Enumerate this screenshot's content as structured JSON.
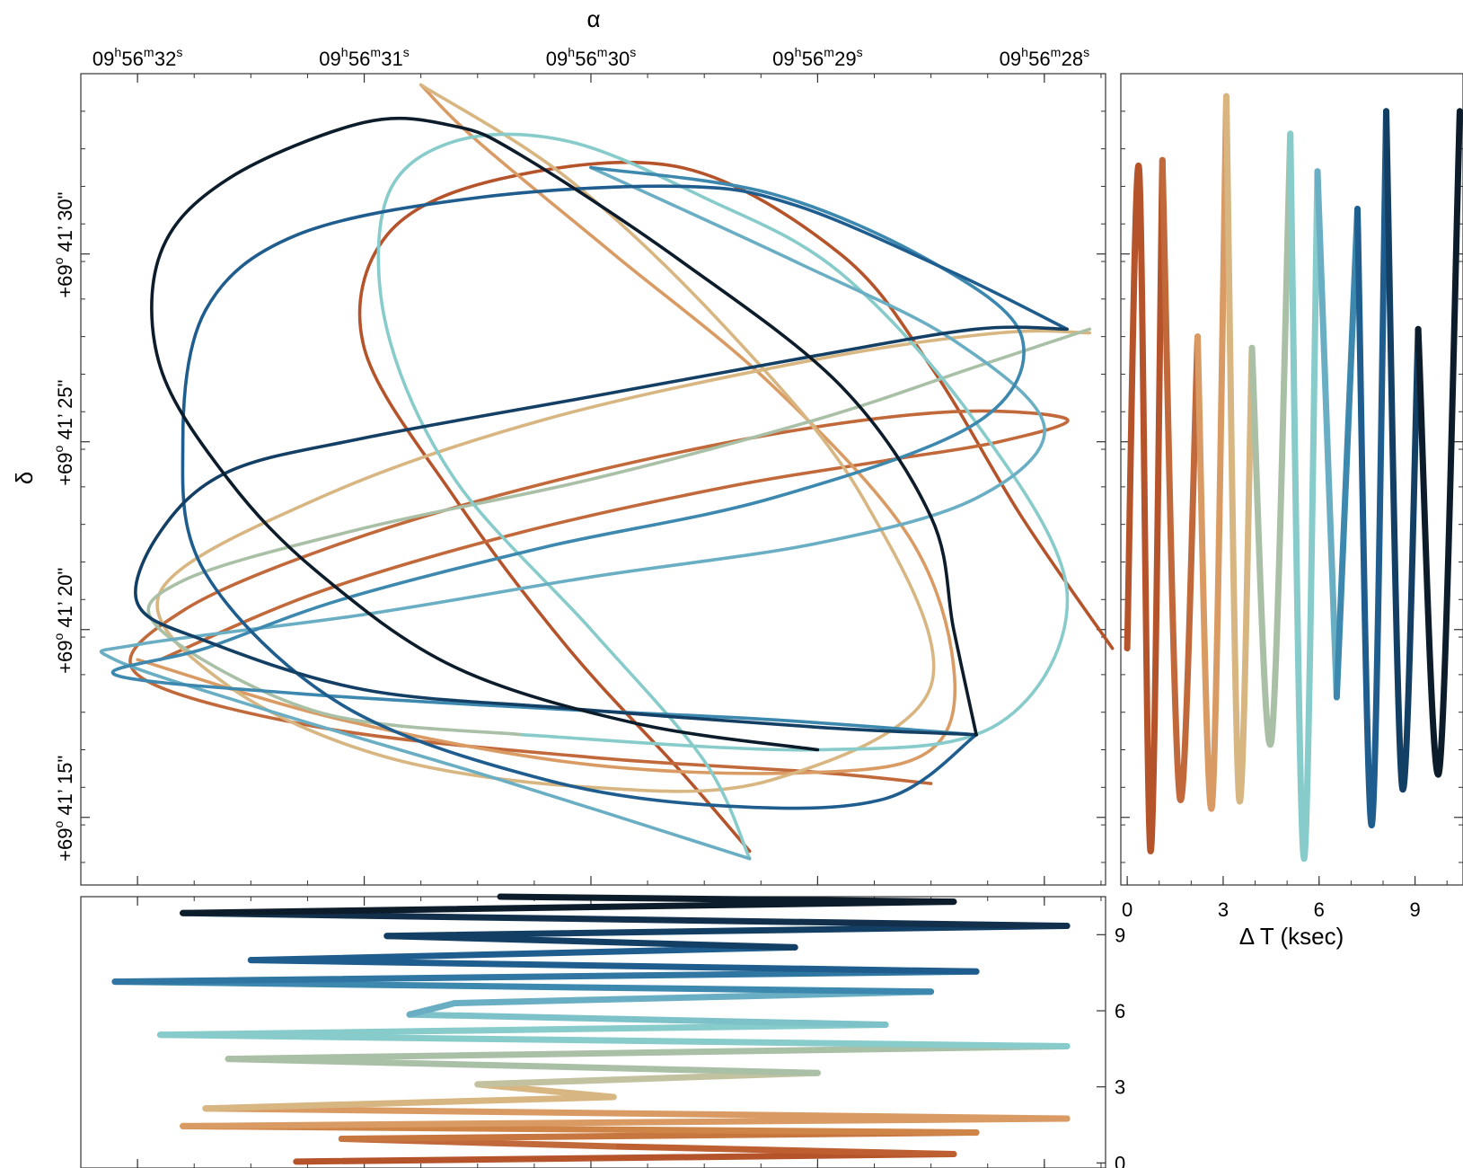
{
  "chart_data": [
    {
      "type": "line",
      "name": "sky-track",
      "xlabel": "α",
      "ylabel": "δ",
      "x_ticks": [
        {
          "h": "09",
          "m": "56",
          "s": "32"
        },
        {
          "h": "09",
          "m": "56",
          "s": "31"
        },
        {
          "h": "09",
          "m": "56",
          "s": "30"
        },
        {
          "h": "09",
          "m": "56",
          "s": "29"
        },
        {
          "h": "09",
          "m": "56",
          "s": "28"
        }
      ],
      "x_tick_values_sec": [
        32,
        31,
        30,
        29,
        28
      ],
      "y_ticks": [
        {
          "d": "+69",
          "m": "41",
          "s": "30\""
        },
        {
          "d": "+69",
          "m": "41",
          "s": "25\""
        },
        {
          "d": "+69",
          "m": "41",
          "s": "20\""
        },
        {
          "d": "+69",
          "m": "41",
          "s": "15\""
        }
      ],
      "y_tick_values_arcsec": [
        30,
        25,
        20,
        15
      ],
      "xlim_sec": [
        32.25,
        27.73
      ],
      "ylim_arcsec": [
        34.8,
        13.2
      ],
      "series": [
        {
          "color": "#b5532a",
          "points": [
            [
              27.7,
              19.5
            ],
            [
              28.1,
              23.0
            ],
            [
              28.5,
              27.0
            ],
            [
              28.9,
              30.0
            ],
            [
              29.6,
              32.3
            ],
            [
              30.4,
              32.0
            ],
            [
              30.9,
              30.5
            ],
            [
              31.0,
              27.5
            ],
            [
              30.6,
              23.5
            ],
            [
              30.1,
              19.5
            ],
            [
              29.6,
              16.2
            ],
            [
              29.3,
              14.1
            ]
          ]
        },
        {
          "color": "#c1693b",
          "points": [
            [
              31.9,
              19.2
            ],
            [
              31.2,
              21.0
            ],
            [
              30.3,
              22.6
            ],
            [
              29.4,
              23.8
            ],
            [
              28.7,
              24.5
            ],
            [
              28.2,
              25.0
            ],
            [
              27.9,
              25.6
            ],
            [
              28.4,
              25.8
            ],
            [
              29.2,
              25.2
            ],
            [
              30.2,
              23.9
            ],
            [
              31.1,
              22.3
            ],
            [
              31.8,
              20.5
            ],
            [
              32.0,
              18.8
            ],
            [
              31.2,
              17.4
            ],
            [
              30.0,
              16.6
            ],
            [
              29.0,
              16.2
            ],
            [
              28.5,
              15.9
            ]
          ]
        },
        {
          "color": "#d99b63",
          "points": [
            [
              32.0,
              19.2
            ],
            [
              31.1,
              17.6
            ],
            [
              30.0,
              16.4
            ],
            [
              29.0,
              16.2
            ],
            [
              28.5,
              16.8
            ],
            [
              28.4,
              19.0
            ],
            [
              28.6,
              22.5
            ],
            [
              29.2,
              26.5
            ],
            [
              29.9,
              30.0
            ],
            [
              30.5,
              33.0
            ],
            [
              30.75,
              34.5
            ]
          ]
        },
        {
          "color": "#d8b682",
          "points": [
            [
              30.75,
              34.5
            ],
            [
              30.1,
              32.0
            ],
            [
              29.4,
              28.0
            ],
            [
              28.8,
              23.5
            ],
            [
              28.5,
              18.5
            ],
            [
              29.2,
              16.0
            ],
            [
              30.0,
              15.8
            ],
            [
              30.9,
              16.6
            ],
            [
              31.6,
              18.5
            ],
            [
              31.9,
              21.0
            ],
            [
              31.2,
              23.5
            ],
            [
              30.2,
              25.6
            ],
            [
              29.0,
              27.2
            ],
            [
              28.2,
              27.9
            ],
            [
              27.8,
              27.9
            ]
          ]
        },
        {
          "color": "#a9c0a6",
          "points": [
            [
              27.8,
              28.0
            ],
            [
              28.3,
              27.0
            ],
            [
              29.0,
              25.6
            ],
            [
              30.0,
              24.0
            ],
            [
              31.0,
              22.7
            ],
            [
              31.8,
              21.3
            ],
            [
              31.9,
              20.0
            ],
            [
              31.2,
              17.8
            ],
            [
              30.3,
              17.2
            ]
          ]
        },
        {
          "color": "#87cbcb",
          "points": [
            [
              30.3,
              17.2
            ],
            [
              29.0,
              16.8
            ],
            [
              28.2,
              17.5
            ],
            [
              27.9,
              21.0
            ],
            [
              28.3,
              25.5
            ],
            [
              28.9,
              29.5
            ],
            [
              29.5,
              31.5
            ],
            [
              30.1,
              33.0
            ],
            [
              30.6,
              33.0
            ],
            [
              30.9,
              31.5
            ],
            [
              30.9,
              28.0
            ],
            [
              30.6,
              24.0
            ],
            [
              30.0,
              20.0
            ],
            [
              29.5,
              16.5
            ],
            [
              29.3,
              13.9
            ]
          ]
        },
        {
          "color": "#6aaec4",
          "points": [
            [
              29.3,
              13.9
            ],
            [
              30.4,
              16.0
            ],
            [
              31.4,
              17.8
            ],
            [
              32.1,
              19.2
            ],
            [
              32.0,
              19.6
            ],
            [
              31.0,
              20.4
            ],
            [
              30.0,
              21.4
            ],
            [
              29.0,
              22.3
            ],
            [
              28.3,
              23.5
            ],
            [
              28.0,
              25.4
            ],
            [
              28.4,
              27.7
            ],
            [
              29.1,
              29.8
            ],
            [
              30.0,
              32.3
            ]
          ]
        },
        {
          "color": "#3d88ae",
          "points": [
            [
              30.0,
              32.3
            ],
            [
              29.2,
              31.6
            ],
            [
              28.5,
              29.8
            ],
            [
              28.1,
              27.8
            ],
            [
              28.3,
              25.5
            ],
            [
              29.2,
              23.5
            ],
            [
              30.2,
              22.2
            ],
            [
              31.1,
              20.8
            ],
            [
              31.7,
              19.5
            ],
            [
              32.1,
              18.8
            ],
            [
              31.3,
              18.3
            ],
            [
              30.2,
              17.9
            ],
            [
              29.2,
              17.6
            ],
            [
              28.3,
              17.2
            ]
          ]
        },
        {
          "color": "#1f5d8f",
          "points": [
            [
              28.3,
              17.2
            ],
            [
              28.7,
              15.5
            ],
            [
              29.4,
              15.3
            ],
            [
              30.2,
              16.0
            ],
            [
              31.1,
              18.0
            ],
            [
              31.7,
              21.5
            ],
            [
              31.8,
              25.0
            ],
            [
              31.7,
              28.5
            ],
            [
              31.3,
              30.5
            ],
            [
              30.5,
              31.5
            ],
            [
              29.6,
              31.8
            ],
            [
              29.1,
              31.3
            ],
            [
              28.4,
              29.5
            ],
            [
              27.9,
              28.0
            ]
          ]
        },
        {
          "color": "#143f65",
          "points": [
            [
              27.9,
              28.0
            ],
            [
              28.3,
              28.0
            ],
            [
              29.0,
              27.3
            ],
            [
              30.0,
              26.2
            ],
            [
              31.0,
              25.1
            ],
            [
              31.6,
              24.2
            ],
            [
              31.9,
              22.6
            ],
            [
              32.0,
              20.7
            ],
            [
              31.7,
              19.7
            ],
            [
              31.0,
              18.4
            ],
            [
              30.1,
              17.9
            ],
            [
              29.0,
              17.4
            ],
            [
              28.3,
              17.2
            ]
          ]
        },
        {
          "color": "#0d1c2b",
          "points": [
            [
              28.3,
              17.2
            ],
            [
              28.4,
              20.0
            ],
            [
              28.5,
              23.0
            ],
            [
              28.9,
              26.5
            ],
            [
              29.6,
              29.8
            ],
            [
              30.3,
              32.6
            ],
            [
              30.6,
              33.4
            ],
            [
              31.0,
              33.5
            ],
            [
              31.6,
              32.0
            ],
            [
              31.9,
              30.0
            ],
            [
              31.9,
              27.0
            ],
            [
              31.6,
              24.0
            ],
            [
              31.2,
              21.5
            ],
            [
              30.6,
              19.0
            ],
            [
              29.8,
              17.5
            ],
            [
              29.0,
              16.8
            ]
          ]
        }
      ]
    },
    {
      "type": "line",
      "name": "dec-vs-time",
      "xlabel": "Δ T (ksec)",
      "x_ticks": [
        "0",
        "3",
        "6",
        "9"
      ],
      "x_tick_values": [
        0,
        3,
        6,
        9
      ],
      "xlim": [
        -0.2,
        10.5
      ],
      "ylim_arcsec": [
        34.8,
        13.2
      ],
      "segments": [
        {
          "color": "#b5532a",
          "t_start": 0.0,
          "t_end": 1.1,
          "extremes": [
            19.5,
            32.3,
            14.1,
            32.5
          ]
        },
        {
          "color": "#c1693b",
          "t_start": 1.1,
          "t_end": 2.2,
          "extremes": [
            32.5,
            15.5,
            27.8
          ]
        },
        {
          "color": "#d99b63",
          "t_start": 2.2,
          "t_end": 3.1,
          "extremes": [
            27.8,
            15.3,
            34.2
          ]
        },
        {
          "color": "#d8b682",
          "t_start": 3.1,
          "t_end": 3.9,
          "extremes": [
            34.2,
            15.5,
            27.5
          ]
        },
        {
          "color": "#a9c0a6",
          "t_start": 3.9,
          "t_end": 5.1,
          "extremes": [
            27.5,
            17.0,
            33.2
          ]
        },
        {
          "color": "#87cbcb",
          "t_start": 5.1,
          "t_end": 5.95,
          "extremes": [
            33.2,
            13.9,
            32.2
          ]
        },
        {
          "color": "#6aaec4",
          "t_start": 5.95,
          "t_end": 6.55,
          "extremes": [
            32.2,
            18.2
          ]
        },
        {
          "color": "#3d88ae",
          "t_start": 6.55,
          "t_end": 7.2,
          "extremes": [
            18.2,
            31.2
          ]
        },
        {
          "color": "#1f5d8f",
          "t_start": 7.2,
          "t_end": 8.1,
          "extremes": [
            31.2,
            14.8,
            33.8
          ]
        },
        {
          "color": "#143f65",
          "t_start": 8.1,
          "t_end": 9.1,
          "extremes": [
            33.8,
            15.8,
            28.0
          ]
        },
        {
          "color": "#0d1c2b",
          "t_start": 9.1,
          "t_end": 10.4,
          "extremes": [
            28.0,
            16.2,
            33.8
          ]
        }
      ]
    },
    {
      "type": "line",
      "name": "ra-vs-time",
      "ylabel": "",
      "y_ticks": [
        "0",
        "3",
        "6",
        "9"
      ],
      "y_tick_values": [
        0,
        3,
        6,
        9
      ],
      "ylim": [
        -0.2,
        10.5
      ],
      "xlim_sec": [
        32.25,
        27.73
      ],
      "strokes": [
        {
          "color": "#b5532a",
          "t0": 0.05,
          "t1": 0.35,
          "ra0": 31.3,
          "ra1": 28.4
        },
        {
          "color": "#bd5f30",
          "t0": 0.35,
          "t1": 0.65,
          "ra0": 28.4,
          "ra1": 29.9
        },
        {
          "color": "#c1693b",
          "t0": 0.65,
          "t1": 0.95,
          "ra0": 29.9,
          "ra1": 31.1
        },
        {
          "color": "#c8763f",
          "t0": 0.95,
          "t1": 1.2,
          "ra0": 31.1,
          "ra1": 28.3
        },
        {
          "color": "#d08548",
          "t0": 1.2,
          "t1": 1.45,
          "ra0": 28.3,
          "ra1": 31.8
        },
        {
          "color": "#d99b63",
          "t0": 1.45,
          "t1": 1.75,
          "ra0": 31.8,
          "ra1": 27.9
        },
        {
          "color": "#d99b63",
          "t0": 1.75,
          "t1": 2.15,
          "ra0": 27.9,
          "ra1": 31.7
        },
        {
          "color": "#d8b682",
          "t0": 2.15,
          "t1": 2.6,
          "ra0": 31.7,
          "ra1": 29.9
        },
        {
          "color": "#d8b682",
          "t0": 2.6,
          "t1": 3.1,
          "ra0": 29.9,
          "ra1": 30.5
        },
        {
          "color": "#c3c2a0",
          "t0": 3.1,
          "t1": 3.55,
          "ra0": 30.5,
          "ra1": 29.0
        },
        {
          "color": "#a9c0a6",
          "t0": 3.55,
          "t1": 4.1,
          "ra0": 29.0,
          "ra1": 31.6
        },
        {
          "color": "#a9c0a6",
          "t0": 4.1,
          "t1": 4.6,
          "ra0": 31.6,
          "ra1": 27.9
        },
        {
          "color": "#87cbcb",
          "t0": 4.6,
          "t1": 5.05,
          "ra0": 27.9,
          "ra1": 31.9
        },
        {
          "color": "#87cbcb",
          "t0": 5.05,
          "t1": 5.45,
          "ra0": 31.9,
          "ra1": 28.7
        },
        {
          "color": "#7ec2c9",
          "t0": 5.45,
          "t1": 5.85,
          "ra0": 28.7,
          "ra1": 30.8
        },
        {
          "color": "#6aaec4",
          "t0": 5.85,
          "t1": 6.3,
          "ra0": 30.8,
          "ra1": 30.6
        },
        {
          "color": "#6aaec4",
          "t0": 6.3,
          "t1": 6.75,
          "ra0": 30.6,
          "ra1": 28.5
        },
        {
          "color": "#3d88ae",
          "t0": 6.75,
          "t1": 7.15,
          "ra0": 28.5,
          "ra1": 32.1
        },
        {
          "color": "#2f76a2",
          "t0": 7.15,
          "t1": 7.55,
          "ra0": 32.1,
          "ra1": 28.3
        },
        {
          "color": "#1f5d8f",
          "t0": 7.55,
          "t1": 8.0,
          "ra0": 28.3,
          "ra1": 31.5
        },
        {
          "color": "#1f5d8f",
          "t0": 8.0,
          "t1": 8.5,
          "ra0": 31.5,
          "ra1": 29.1
        },
        {
          "color": "#143f65",
          "t0": 8.5,
          "t1": 8.95,
          "ra0": 29.1,
          "ra1": 30.9
        },
        {
          "color": "#143f65",
          "t0": 8.95,
          "t1": 9.35,
          "ra0": 30.9,
          "ra1": 27.9
        },
        {
          "color": "#12304c",
          "t0": 9.35,
          "t1": 9.85,
          "ra0": 27.9,
          "ra1": 31.8
        },
        {
          "color": "#0d1c2b",
          "t0": 9.85,
          "t1": 10.3,
          "ra0": 31.8,
          "ra1": 28.4
        },
        {
          "color": "#0d1c2b",
          "t0": 10.3,
          "t1": 10.5,
          "ra0": 28.4,
          "ra1": 30.4
        }
      ]
    }
  ]
}
